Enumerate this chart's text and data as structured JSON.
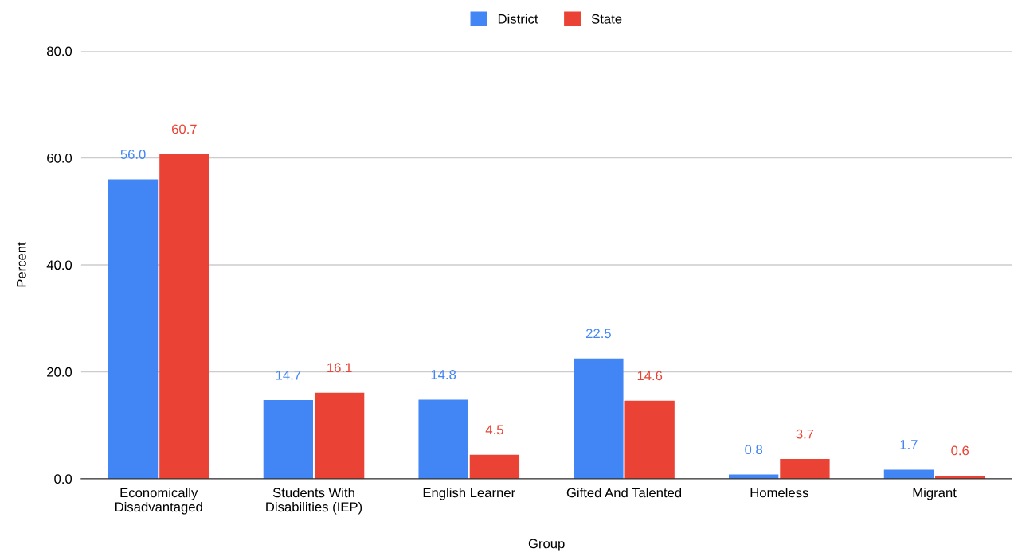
{
  "chart_data": {
    "type": "bar",
    "xlabel": "Group",
    "ylabel": "Percent",
    "categories": [
      "Economically\nDisadvantaged",
      "Students With\nDisabilities (IEP)",
      "English Learner",
      "Gifted And Talented",
      "Homeless",
      "Migrant"
    ],
    "series": [
      {
        "name": "District",
        "color": "#4285f4",
        "values": [
          56.0,
          14.7,
          14.8,
          22.5,
          0.8,
          1.7
        ],
        "value_labels": [
          "56.0",
          "14.7",
          "14.8",
          "22.5",
          "0.8",
          "1.7"
        ]
      },
      {
        "name": "State",
        "color": "#ea4335",
        "values": [
          60.7,
          16.1,
          4.5,
          14.6,
          3.7,
          0.6
        ],
        "value_labels": [
          "60.7",
          "16.1",
          "4.5",
          "14.6",
          "3.7",
          "0.6"
        ]
      }
    ],
    "ylim": [
      0,
      80
    ],
    "yticks": [
      {
        "value": 0,
        "label": "0.0"
      },
      {
        "value": 20,
        "label": "20.0"
      },
      {
        "value": 40,
        "label": "40.0"
      },
      {
        "value": 60,
        "label": "60.0"
      },
      {
        "value": 80,
        "label": "80.0"
      }
    ],
    "grid": "y",
    "legend": "top"
  }
}
